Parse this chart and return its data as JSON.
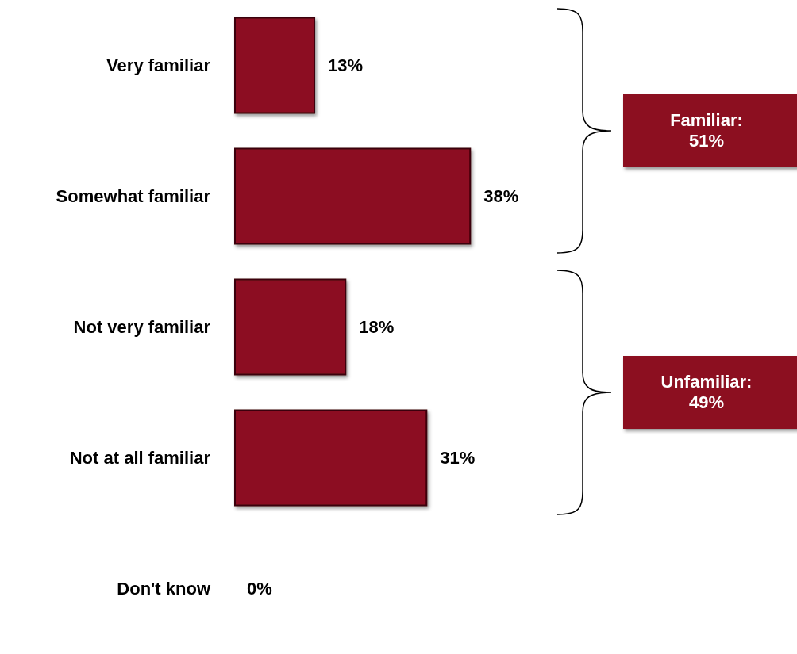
{
  "chart_data": {
    "type": "bar",
    "orientation": "horizontal",
    "categories": [
      "Very familiar",
      "Somewhat familiar",
      "Not very familiar",
      "Not at all familiar",
      "Don't know"
    ],
    "values": [
      13,
      38,
      18,
      31,
      0
    ],
    "value_labels": [
      "13%",
      "38%",
      "18%",
      "31%",
      "0%"
    ],
    "color": "#8c0f20",
    "annotations": [
      "Familiar: 51%",
      "Unfamiliar: 49%"
    ],
    "grid": false
  }
}
